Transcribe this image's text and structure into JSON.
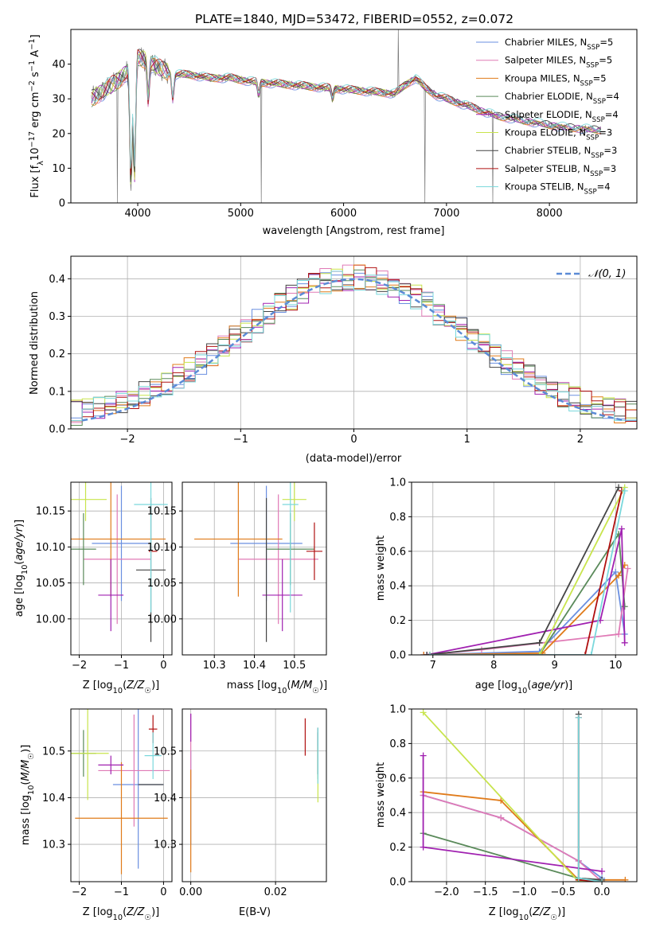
{
  "figure": {
    "title": "PLATE=1840, MJD=53472, FIBERID=0552, z=0.072"
  },
  "colors": {
    "Chabrier MILES": "#6a8fe0",
    "Salpeter MILES": "#e07ab6",
    "Kroupa MILES": "#e07b1a",
    "Chabrier ELODIE": "#5a8a5a",
    "Salpeter ELODIE": "#a020b0",
    "Kroupa ELODIE": "#c8e44c",
    "Chabrier STELIB": "#444444",
    "Salpeter STELIB": "#b01010",
    "Kroupa STELIB": "#7ad8dc",
    "data": "#7a7a7a",
    "grid": "#b0b0b0",
    "gauss": "#5b8bd6"
  },
  "legend": {
    "spectrum": [
      {
        "name": "Chabrier MILES",
        "label": "Chabrier MILES, N",
        "sub": "SSP",
        "tail": "=5"
      },
      {
        "name": "Salpeter MILES",
        "label": "Salpeter MILES, N",
        "sub": "SSP",
        "tail": "=5"
      },
      {
        "name": "Kroupa MILES",
        "label": "Kroupa MILES, N",
        "sub": "SSP",
        "tail": "=5"
      },
      {
        "name": "Chabrier ELODIE",
        "label": "Chabrier ELODIE, N",
        "sub": "SSP",
        "tail": "=4"
      },
      {
        "name": "Salpeter ELODIE",
        "label": "Salpeter ELODIE, N",
        "sub": "SSP",
        "tail": "=4"
      },
      {
        "name": "Kroupa ELODIE",
        "label": "Kroupa ELODIE, N",
        "sub": "SSP",
        "tail": "=3"
      },
      {
        "name": "Chabrier STELIB",
        "label": "Chabrier STELIB, N",
        "sub": "SSP",
        "tail": "=3"
      },
      {
        "name": "Salpeter STELIB",
        "label": "Salpeter STELIB, N",
        "sub": "SSP",
        "tail": "=3"
      },
      {
        "name": "Kroupa STELIB",
        "label": "Kroupa STELIB, N",
        "sub": "SSP",
        "tail": "=4"
      }
    ],
    "hist": "𝒩(0, 1)"
  },
  "chart_data": [
    {
      "id": "spectrum",
      "type": "line",
      "title": "PLATE=1840, MJD=53472, FIBERID=0552, z=0.072",
      "xlabel": "wavelength [Angstrom, rest frame]",
      "ylabel": "Flux [f_λ 10^-17 erg cm^-2 s^-1 A^-1]",
      "xlim": [
        3350,
        8850
      ],
      "ylim": [
        0,
        50
      ],
      "xticks": [
        4000,
        5000,
        6000,
        7000,
        8000
      ],
      "yticks": [
        0,
        10,
        20,
        30,
        40
      ],
      "legend_loc": "upper right",
      "anchors": [
        [
          3550,
          30
        ],
        [
          3700,
          33
        ],
        [
          3800,
          35
        ],
        [
          3900,
          38
        ],
        [
          3960,
          33
        ],
        [
          4000,
          42
        ],
        [
          4100,
          41
        ],
        [
          4200,
          39
        ],
        [
          4350,
          37
        ],
        [
          4500,
          37
        ],
        [
          4700,
          36
        ],
        [
          4900,
          36
        ],
        [
          5100,
          35
        ],
        [
          5300,
          34.5
        ],
        [
          5500,
          34
        ],
        [
          5700,
          33.5
        ],
        [
          5900,
          33
        ],
        [
          6100,
          32.5
        ],
        [
          6300,
          32
        ],
        [
          6500,
          31.5
        ],
        [
          6560,
          33
        ],
        [
          6600,
          34
        ],
        [
          6700,
          36
        ],
        [
          6800,
          33
        ],
        [
          6900,
          31
        ],
        [
          7100,
          29
        ],
        [
          7300,
          27
        ],
        [
          7500,
          25
        ],
        [
          7700,
          24
        ],
        [
          7900,
          23
        ],
        [
          8100,
          22
        ],
        [
          8300,
          21.5
        ],
        [
          8500,
          21
        ]
      ],
      "dips": [
        [
          3934,
          5
        ],
        [
          3969,
          8
        ],
        [
          4102,
          30
        ],
        [
          4340,
          30
        ],
        [
          5175,
          31
        ],
        [
          5893,
          30
        ]
      ],
      "spikes": [
        [
          3800,
          0
        ],
        [
          5200,
          0
        ],
        [
          6530,
          50
        ],
        [
          6790,
          0
        ],
        [
          7450,
          0
        ]
      ]
    },
    {
      "id": "residuals",
      "type": "line",
      "xlabel": "(data-model)/error",
      "ylabel": "Normed distribution",
      "xlim": [
        -2.5,
        2.5
      ],
      "ylim": [
        0,
        0.46
      ],
      "xticks": [
        -2,
        -1,
        0,
        1,
        2
      ],
      "yticks": [
        0.0,
        0.1,
        0.2,
        0.3,
        0.4
      ],
      "bin_edges_start": -2.5,
      "bin_width": 0.1,
      "gaussian": {
        "mu": 0,
        "sigma": 1
      }
    },
    {
      "id": "age-vs-Z",
      "type": "scatter",
      "xlabel": "Z [log10(Z/Z☉)]",
      "ylabel": "age  [log10(age/yr)]",
      "xlim": [
        -2.2,
        0.2
      ],
      "ylim": [
        9.95,
        10.19
      ],
      "xticks": [
        -2,
        -1,
        0
      ],
      "yticks": [
        10.0,
        10.05,
        10.1,
        10.15
      ],
      "points": [
        {
          "series": "Chabrier MILES",
          "x": -1.0,
          "xerr": 0.7,
          "y": 10.105,
          "yerr": 0.08
        },
        {
          "series": "Salpeter MILES",
          "x": -1.1,
          "xerr": 0.8,
          "y": 10.083,
          "yerr": 0.09
        },
        {
          "series": "Kroupa MILES",
          "x": -1.25,
          "xerr": 1.3,
          "y": 10.111,
          "yerr": 0.08
        },
        {
          "series": "Chabrier ELODIE",
          "x": -1.9,
          "xerr": 0.3,
          "y": 10.097,
          "yerr": 0.05
        },
        {
          "series": "Salpeter ELODIE",
          "x": -1.25,
          "xerr": 0.3,
          "y": 10.033,
          "yerr": 0.05
        },
        {
          "series": "Kroupa ELODIE",
          "x": -1.85,
          "xerr": 0.5,
          "y": 10.166,
          "yerr": 0.03
        },
        {
          "series": "Chabrier STELIB",
          "x": -0.3,
          "xerr": 0.35,
          "y": 10.068,
          "yerr": 0.1
        },
        {
          "series": "Salpeter STELIB",
          "x": -0.25,
          "xerr": 0.1,
          "y": 10.094,
          "yerr": 0.0
        },
        {
          "series": "Kroupa STELIB",
          "x": -0.3,
          "xerr": 0.4,
          "y": 10.159,
          "yerr": 0.15
        }
      ]
    },
    {
      "id": "age-vs-mass",
      "type": "scatter",
      "xlabel": "mass [log10(M/M☉)]",
      "ylabel": "",
      "xlim": [
        10.22,
        10.58
      ],
      "ylim": [
        9.95,
        10.19
      ],
      "xticks": [
        10.3,
        10.4,
        10.5
      ],
      "yticks": [
        10.0,
        10.05,
        10.1,
        10.15
      ],
      "points": [
        {
          "series": "Chabrier MILES",
          "x": 10.43,
          "xerr": 0.09,
          "y": 10.105,
          "yerr": 0.08
        },
        {
          "series": "Salpeter MILES",
          "x": 10.46,
          "xerr": 0.1,
          "y": 10.083,
          "yerr": 0.09
        },
        {
          "series": "Kroupa MILES",
          "x": 10.36,
          "xerr": 0.11,
          "y": 10.111,
          "yerr": 0.08
        },
        {
          "series": "Chabrier ELODIE",
          "x": 10.49,
          "xerr": 0.06,
          "y": 10.097,
          "yerr": 0.05
        },
        {
          "series": "Salpeter ELODIE",
          "x": 10.47,
          "xerr": 0.05,
          "y": 10.033,
          "yerr": 0.05
        },
        {
          "series": "Kroupa ELODIE",
          "x": 10.5,
          "xerr": 0.03,
          "y": 10.166,
          "yerr": 0.03
        },
        {
          "series": "Chabrier STELIB",
          "x": 10.43,
          "xerr": 0.0,
          "y": 10.068,
          "yerr": 0.1
        },
        {
          "series": "Salpeter STELIB",
          "x": 10.55,
          "xerr": 0.02,
          "y": 10.094,
          "yerr": 0.04
        },
        {
          "series": "Kroupa STELIB",
          "x": 10.49,
          "xerr": 0.02,
          "y": 10.159,
          "yerr": 0.15
        }
      ]
    },
    {
      "id": "massweight-vs-age",
      "type": "line",
      "xlabel": "age  [log10(age/yr)]",
      "ylabel": "mass weight",
      "xlim": [
        6.65,
        10.35
      ],
      "ylim": [
        0,
        1.0
      ],
      "xticks": [
        7,
        8,
        9,
        10
      ],
      "yticks": [
        0.0,
        0.2,
        0.4,
        0.6,
        0.8,
        1.0
      ],
      "series": [
        {
          "name": "Chabrier MILES",
          "x": [
            6.85,
            8.75,
            10.0,
            10.15
          ],
          "y": [
            0.0,
            0.02,
            0.48,
            0.12
          ]
        },
        {
          "name": "Salpeter MILES",
          "x": [
            6.85,
            7.8,
            10.05,
            10.2
          ],
          "y": [
            0.0,
            0.03,
            0.12,
            0.5
          ]
        },
        {
          "name": "Kroupa MILES",
          "x": [
            6.85,
            8.8,
            10.05,
            10.15
          ],
          "y": [
            0.0,
            0.01,
            0.46,
            0.52
          ]
        },
        {
          "name": "Chabrier ELODIE",
          "x": [
            6.9,
            8.75,
            10.05,
            10.15
          ],
          "y": [
            0.0,
            0.0,
            0.7,
            0.28
          ]
        },
        {
          "name": "Salpeter ELODIE",
          "x": [
            6.9,
            9.75,
            10.1,
            10.15
          ],
          "y": [
            0.0,
            0.2,
            0.73,
            0.07
          ]
        },
        {
          "name": "Kroupa ELODIE",
          "x": [
            6.95,
            8.75,
            10.15
          ],
          "y": [
            0.0,
            0.0,
            0.97
          ]
        },
        {
          "name": "Chabrier STELIB",
          "x": [
            6.9,
            8.75,
            10.05
          ],
          "y": [
            0.0,
            0.07,
            0.97
          ]
        },
        {
          "name": "Salpeter STELIB",
          "x": [
            6.95,
            9.5,
            10.1
          ],
          "y": [
            0.0,
            0.0,
            0.95
          ]
        },
        {
          "name": "Kroupa STELIB",
          "x": [
            6.95,
            9.6,
            10.15
          ],
          "y": [
            0.0,
            0.0,
            0.95
          ]
        }
      ]
    },
    {
      "id": "mass-vs-Z",
      "type": "scatter",
      "xlabel": "Z [log10(Z/Z☉)]",
      "ylabel": "mass [log10(M/M☉)]",
      "xlim": [
        -2.2,
        0.2
      ],
      "ylim": [
        10.22,
        10.59
      ],
      "xticks": [
        -2,
        -1,
        0
      ],
      "yticks": [
        10.3,
        10.4,
        10.5
      ],
      "points": [
        {
          "series": "Chabrier MILES",
          "x": -0.6,
          "xerr": 0.6,
          "y": 10.428,
          "yerr": 0.18
        },
        {
          "series": "Salpeter MILES",
          "x": -0.7,
          "xerr": 0.85,
          "y": 10.458,
          "yerr": 0.12
        },
        {
          "series": "Kroupa MILES",
          "x": -1.0,
          "xerr": 1.1,
          "y": 10.356,
          "yerr": 0.12
        },
        {
          "series": "Chabrier ELODIE",
          "x": -1.9,
          "xerr": 0.3,
          "y": 10.495,
          "yerr": 0.05
        },
        {
          "series": "Salpeter ELODIE",
          "x": -1.25,
          "xerr": 0.3,
          "y": 10.47,
          "yerr": 0.02
        },
        {
          "series": "Kroupa ELODIE",
          "x": -1.8,
          "xerr": 0.5,
          "y": 10.495,
          "yerr": 0.1
        },
        {
          "series": "Chabrier STELIB",
          "x": -0.3,
          "xerr": 0.3,
          "y": 10.428,
          "yerr": 0.0
        },
        {
          "series": "Salpeter STELIB",
          "x": -0.25,
          "xerr": 0.1,
          "y": 10.547,
          "yerr": 0.03
        },
        {
          "series": "Kroupa STELIB",
          "x": -0.25,
          "xerr": 0.2,
          "y": 10.49,
          "yerr": 0.05
        }
      ]
    },
    {
      "id": "mass-vs-EBV",
      "type": "scatter",
      "xlabel": "E(B-V)",
      "ylabel": "",
      "xlim": [
        -0.002,
        0.032
      ],
      "ylim": [
        10.22,
        10.59
      ],
      "xticks": [
        0.0,
        0.02
      ],
      "yticks": [
        10.3,
        10.4,
        10.5
      ],
      "points": [
        {
          "series": "Chabrier MILES",
          "x": 0.0,
          "xerr": 0,
          "y": 10.4,
          "yerr": 0.1
        },
        {
          "series": "Salpeter MILES",
          "x": 0.0,
          "xerr": 0,
          "y": 10.5,
          "yerr": 0.08
        },
        {
          "series": "Kroupa MILES",
          "x": 0.0,
          "xerr": 0,
          "y": 10.35,
          "yerr": 0.11
        },
        {
          "series": "Chabrier ELODIE",
          "x": 0.03,
          "xerr": 0,
          "y": 10.49,
          "yerr": 0.05
        },
        {
          "series": "Salpeter ELODIE",
          "x": 0.0,
          "xerr": 0,
          "y": 10.55,
          "yerr": 0.03
        },
        {
          "series": "Kroupa ELODIE",
          "x": 0.03,
          "xerr": 0,
          "y": 10.45,
          "yerr": 0.06
        },
        {
          "series": "Chabrier STELIB",
          "x": 0.03,
          "xerr": 0,
          "y": 10.5,
          "yerr": 0.05
        },
        {
          "series": "Salpeter STELIB",
          "x": 0.027,
          "xerr": 0,
          "y": 10.53,
          "yerr": 0.04
        },
        {
          "series": "Kroupa STELIB",
          "x": 0.03,
          "xerr": 0,
          "y": 10.49,
          "yerr": 0.06
        }
      ]
    },
    {
      "id": "massweight-vs-Z",
      "type": "line",
      "xlabel": "Z [log10(Z/Z☉)]",
      "ylabel": "mass weight",
      "xlim": [
        -2.45,
        0.45
      ],
      "ylim": [
        0,
        1.0
      ],
      "xticks": [
        -2.0,
        -1.5,
        -1.0,
        -0.5,
        0.0
      ],
      "yticks": [
        0.0,
        0.2,
        0.4,
        0.6,
        0.8,
        1.0
      ],
      "series": [
        {
          "name": "Chabrier MILES",
          "x": [
            -2.3,
            -1.3,
            -0.3,
            0.0
          ],
          "y": [
            0.5,
            0.37,
            0.12,
            0.02
          ]
        },
        {
          "name": "Salpeter MILES",
          "x": [
            -2.3,
            -1.3,
            -0.3,
            0.0
          ],
          "y": [
            0.5,
            0.37,
            0.12,
            0.0
          ]
        },
        {
          "name": "Kroupa MILES",
          "x": [
            -2.3,
            -1.3,
            -0.3,
            0.3
          ],
          "y": [
            0.52,
            0.47,
            0.01,
            0.01
          ]
        },
        {
          "name": "Chabrier ELODIE",
          "x": [
            -2.3,
            -0.3,
            0.0
          ],
          "y": [
            0.28,
            0.02,
            0.01
          ]
        },
        {
          "name": "Salpeter ELODIE",
          "x": [
            -2.3,
            -2.3,
            0.0
          ],
          "y": [
            0.73,
            0.2,
            0.06
          ]
        },
        {
          "name": "Kroupa ELODIE",
          "x": [
            -2.3,
            -0.3,
            0.0
          ],
          "y": [
            0.98,
            0.0,
            0.0
          ]
        },
        {
          "name": "Chabrier STELIB",
          "x": [
            -0.3,
            -0.3,
            0.0
          ],
          "y": [
            0.97,
            0.02,
            0.01
          ]
        },
        {
          "name": "Salpeter STELIB",
          "x": [
            -0.3,
            -0.3,
            0.0
          ],
          "y": [
            0.95,
            0.01,
            0.0
          ]
        },
        {
          "name": "Kroupa STELIB",
          "x": [
            -0.3,
            -0.3,
            0.0
          ],
          "y": [
            0.95,
            0.02,
            0.0
          ]
        }
      ]
    }
  ]
}
